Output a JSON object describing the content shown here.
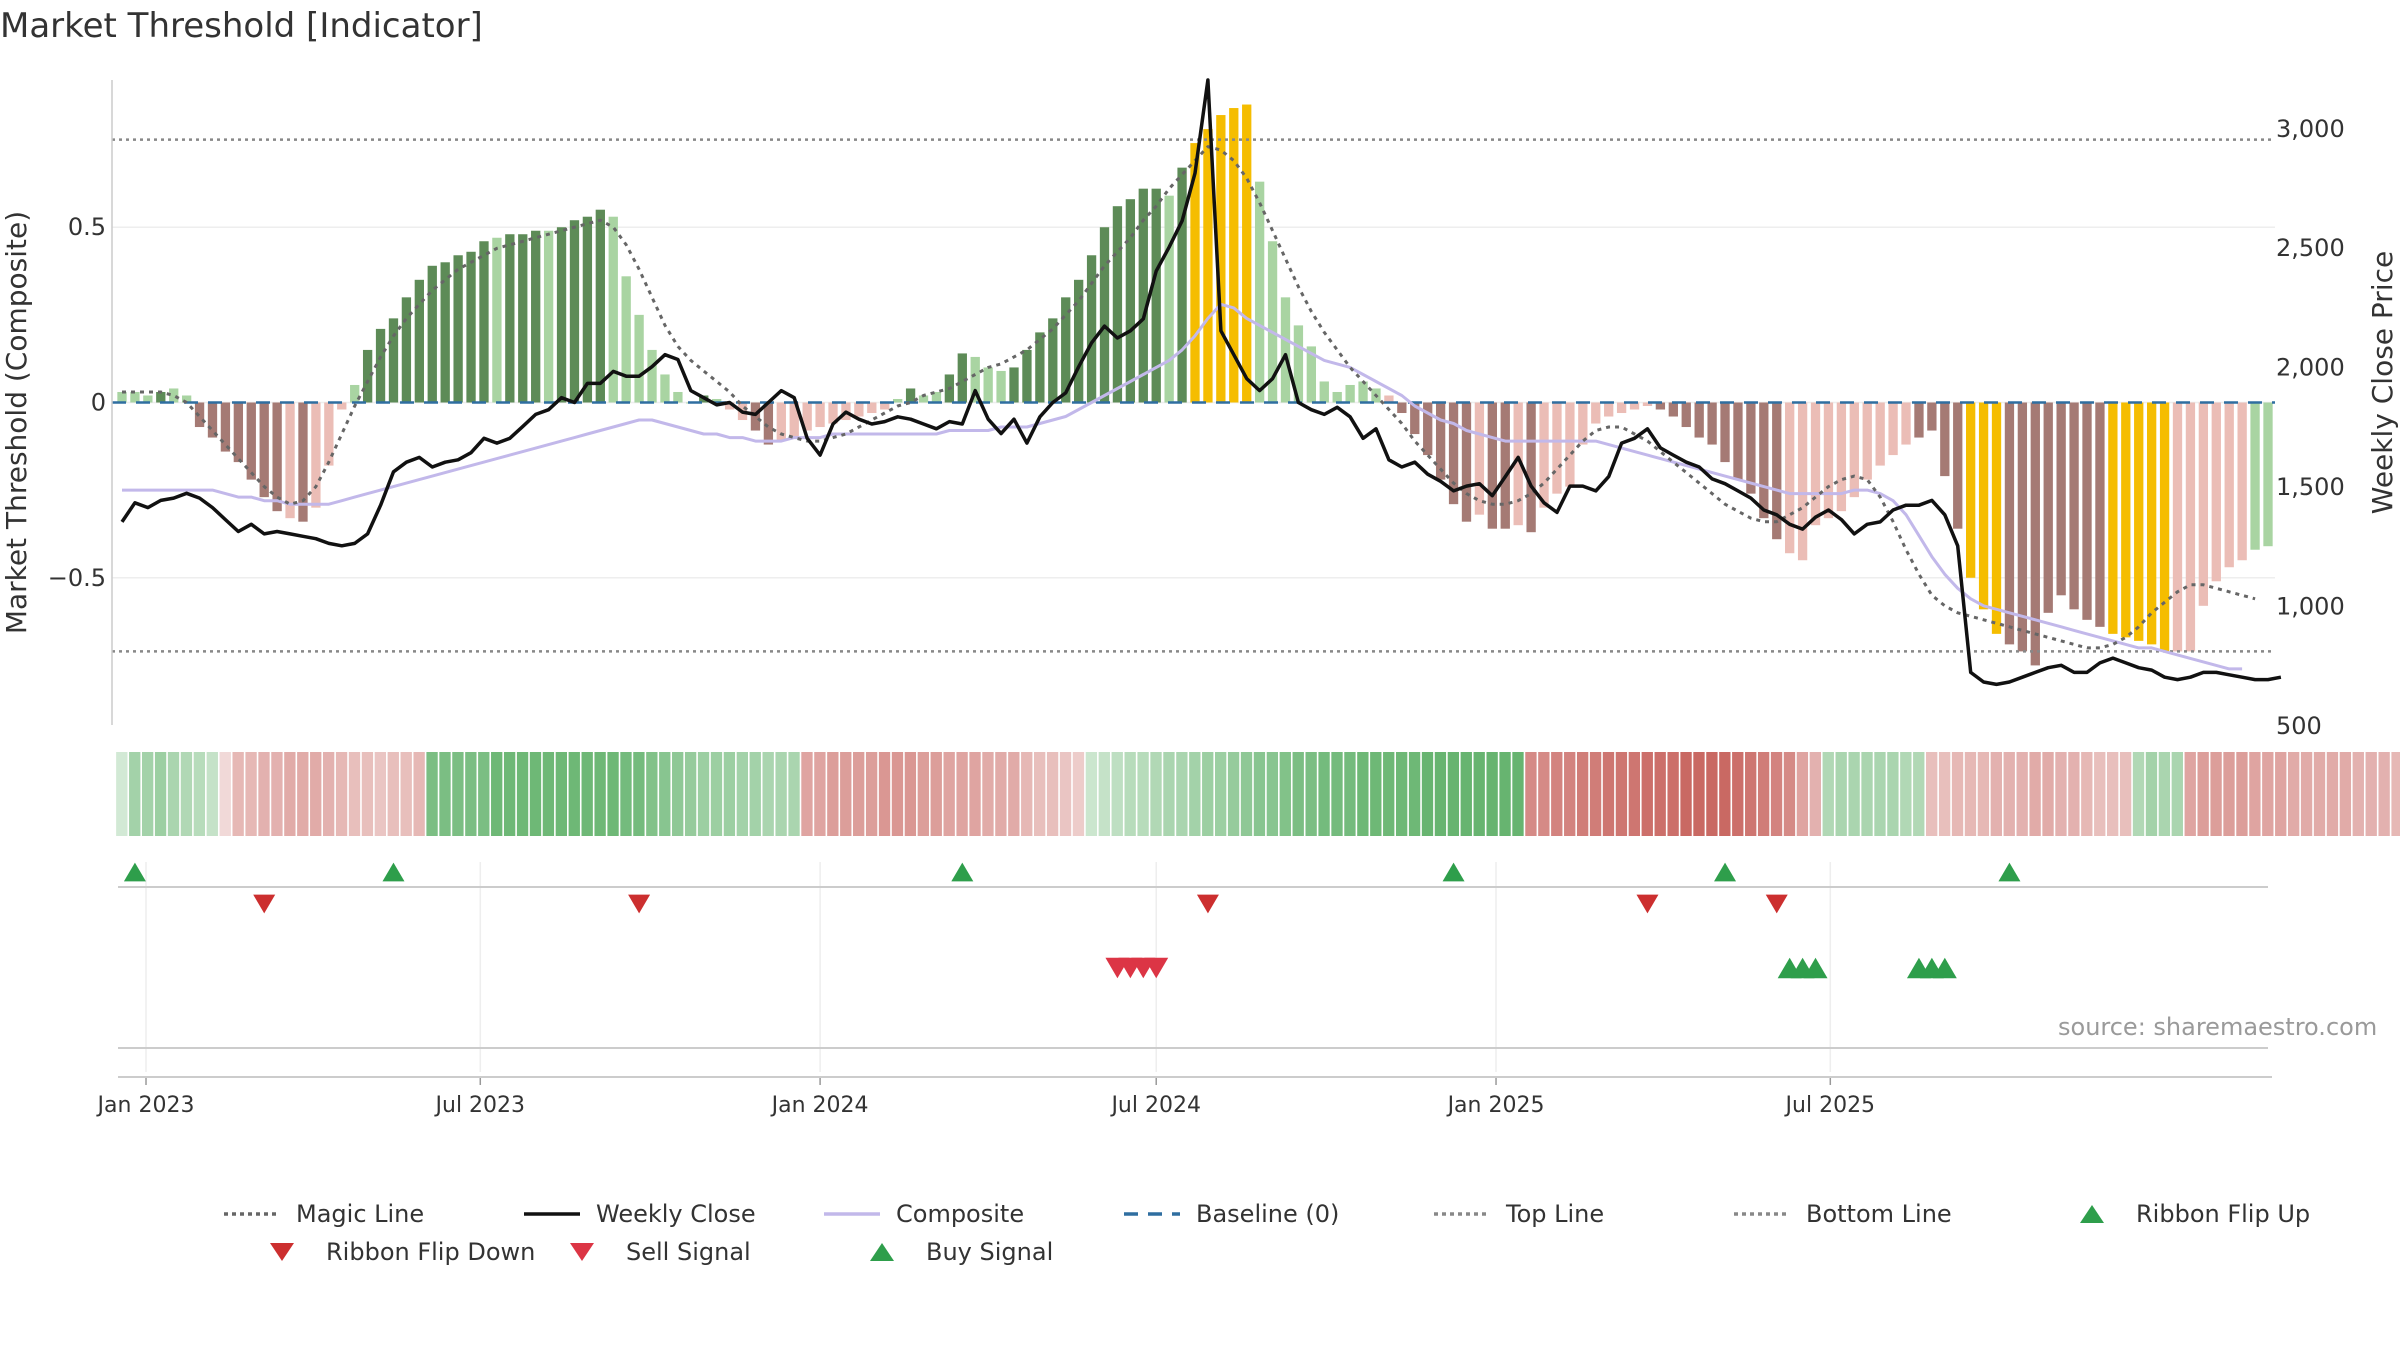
{
  "title": "Market Threshold [Indicator]",
  "source": "source: sharemaestro.com",
  "colors": {
    "dark_green": "#5d8b57",
    "light_green": "#a9d4a2",
    "dark_red": "#a57a74",
    "light_red": "#ebbdb6",
    "gold": "#f5bd00",
    "weekly_close": "#111111",
    "composite": "#c2b8ea",
    "magic": "#666666",
    "baseline": "#2f6ea0",
    "threshold": "#888888",
    "buy": "#2e9e4b",
    "sell": "#dc3545",
    "flip_up": "#2e9e4b",
    "flip_down": "#cc2f2f"
  },
  "chart_data": {
    "type": "bar",
    "title": "Market Threshold [Indicator]",
    "ylabel": "Market Threshold (Composite)",
    "ylabel_right": "Weekly Close Price",
    "x_ticks": [
      "Jan 2023",
      "Jul 2023",
      "Jan 2024",
      "Jul 2024",
      "Jan 2025",
      "Jul 2025"
    ],
    "x_tick_dates": [
      "2023-01-01",
      "2023-07-01",
      "2024-01-01",
      "2024-07-01",
      "2025-01-01",
      "2025-07-01"
    ],
    "y_ticks": [
      0.5,
      0,
      -0.5
    ],
    "y_tick_labels": [
      "0.5",
      "0",
      "−0.5"
    ],
    "y_right_ticks": [
      3000,
      2500,
      2000,
      1500,
      1000,
      500
    ],
    "y_right_tick_labels": [
      "3,000",
      "2,500",
      "2,000",
      "1,500",
      "1,000",
      "500"
    ],
    "ylim": [
      -0.92,
      0.92
    ],
    "ylim_right": [
      500,
      3200
    ],
    "top_line": 0.75,
    "bottom_line": -0.71,
    "baseline": 0,
    "start_date": "2022-12-19",
    "bars": [
      0.03,
      0.03,
      0.02,
      0.03,
      0.04,
      0.02,
      -0.07,
      -0.1,
      -0.14,
      -0.17,
      -0.22,
      -0.27,
      -0.31,
      -0.33,
      -0.34,
      -0.3,
      -0.18,
      -0.02,
      0.05,
      0.15,
      0.21,
      0.24,
      0.3,
      0.35,
      0.39,
      0.4,
      0.42,
      0.43,
      0.46,
      0.47,
      0.48,
      0.48,
      0.49,
      0.49,
      0.5,
      0.52,
      0.53,
      0.55,
      0.53,
      0.36,
      0.25,
      0.15,
      0.08,
      0.03,
      0.0,
      0.02,
      0.01,
      -0.02,
      -0.05,
      -0.08,
      -0.12,
      -0.11,
      -0.1,
      -0.08,
      -0.07,
      -0.06,
      -0.05,
      -0.04,
      -0.03,
      -0.02,
      0.01,
      0.04,
      0.02,
      0.03,
      0.08,
      0.14,
      0.13,
      0.1,
      0.09,
      0.1,
      0.15,
      0.2,
      0.24,
      0.3,
      0.35,
      0.42,
      0.5,
      0.56,
      0.58,
      0.61,
      0.61,
      0.59,
      0.67,
      0.74,
      0.78,
      0.82,
      0.84,
      0.85,
      0.63,
      0.46,
      0.3,
      0.22,
      0.16,
      0.06,
      0.03,
      0.05,
      0.06,
      0.04,
      0.02,
      -0.03,
      -0.09,
      -0.15,
      -0.22,
      -0.29,
      -0.34,
      -0.32,
      -0.36,
      -0.36,
      -0.35,
      -0.37,
      -0.3,
      -0.26,
      -0.24,
      -0.12,
      -0.06,
      -0.04,
      -0.03,
      -0.02,
      -0.01,
      -0.02,
      -0.04,
      -0.07,
      -0.1,
      -0.12,
      -0.17,
      -0.22,
      -0.26,
      -0.33,
      -0.39,
      -0.43,
      -0.45,
      -0.35,
      -0.33,
      -0.31,
      -0.27,
      -0.22,
      -0.18,
      -0.15,
      -0.12,
      -0.1,
      -0.08,
      -0.21,
      -0.36,
      -0.5,
      -0.59,
      -0.66,
      -0.69,
      -0.71,
      -0.75,
      -0.6,
      -0.55,
      -0.59,
      -0.62,
      -0.64,
      -0.66,
      -0.67,
      -0.68,
      -0.69,
      -0.71,
      -0.71,
      -0.71,
      -0.58,
      -0.51,
      -0.47,
      -0.45,
      -0.42,
      -0.41
    ],
    "bar_colors": [
      "lg",
      "lg",
      "lg",
      "dg",
      "lg",
      "lg",
      "dr",
      "dr",
      "dr",
      "dr",
      "dr",
      "dr",
      "dr",
      "lr",
      "dr",
      "lr",
      "lr",
      "lr",
      "lg",
      "dg",
      "dg",
      "dg",
      "dg",
      "dg",
      "dg",
      "dg",
      "dg",
      "dg",
      "dg",
      "lg",
      "dg",
      "dg",
      "dg",
      "lg",
      "dg",
      "dg",
      "dg",
      "dg",
      "lg",
      "lg",
      "lg",
      "lg",
      "lg",
      "lg",
      "lg",
      "dg",
      "lg",
      "lr",
      "lr",
      "dr",
      "dr",
      "lr",
      "lr",
      "lr",
      "lr",
      "lr",
      "lr",
      "lr",
      "lr",
      "lr",
      "lg",
      "dg",
      "lg",
      "lg",
      "dg",
      "dg",
      "lg",
      "lg",
      "lg",
      "dg",
      "dg",
      "dg",
      "dg",
      "dg",
      "dg",
      "dg",
      "dg",
      "dg",
      "dg",
      "dg",
      "dg",
      "lg",
      "dg",
      "y",
      "y",
      "y",
      "y",
      "y",
      "lg",
      "lg",
      "lg",
      "lg",
      "lg",
      "lg",
      "lg",
      "lg",
      "lg",
      "lg",
      "lr",
      "dr",
      "dr",
      "dr",
      "dr",
      "dr",
      "dr",
      "lr",
      "dr",
      "dr",
      "lr",
      "dr",
      "lr",
      "lr",
      "lr",
      "lr",
      "lr",
      "lr",
      "lr",
      "lr",
      "lr",
      "dr",
      "dr",
      "dr",
      "dr",
      "dr",
      "dr",
      "dr",
      "dr",
      "dr",
      "dr",
      "lr",
      "lr",
      "lr",
      "lr",
      "lr",
      "lr",
      "lr",
      "lr",
      "lr",
      "lr",
      "dr",
      "dr",
      "dr",
      "dr",
      "y",
      "y",
      "y",
      "dr",
      "dr",
      "dr",
      "dr",
      "dr",
      "dr",
      "dr",
      "dr",
      "y",
      "y",
      "y",
      "y",
      "y",
      "lr",
      "lr",
      "lr",
      "lr",
      "lr",
      "lr"
    ],
    "series": [
      {
        "name": "Magic Line",
        "axis": "left",
        "values": [
          0.03,
          0.03,
          0.03,
          0.03,
          0.02,
          0.0,
          -0.04,
          -0.08,
          -0.12,
          -0.16,
          -0.2,
          -0.24,
          -0.27,
          -0.29,
          -0.28,
          -0.24,
          -0.17,
          -0.09,
          -0.01,
          0.06,
          0.13,
          0.19,
          0.24,
          0.28,
          0.32,
          0.35,
          0.38,
          0.4,
          0.42,
          0.44,
          0.45,
          0.46,
          0.47,
          0.48,
          0.49,
          0.5,
          0.51,
          0.52,
          0.5,
          0.45,
          0.38,
          0.3,
          0.22,
          0.16,
          0.12,
          0.09,
          0.06,
          0.03,
          -0.01,
          -0.04,
          -0.07,
          -0.09,
          -0.1,
          -0.11,
          -0.11,
          -0.1,
          -0.09,
          -0.07,
          -0.05,
          -0.03,
          -0.01,
          0.0,
          0.02,
          0.03,
          0.04,
          0.06,
          0.08,
          0.1,
          0.11,
          0.13,
          0.15,
          0.18,
          0.21,
          0.25,
          0.29,
          0.34,
          0.39,
          0.43,
          0.47,
          0.52,
          0.56,
          0.61,
          0.65,
          0.69,
          0.73,
          0.72,
          0.69,
          0.64,
          0.57,
          0.49,
          0.41,
          0.33,
          0.26,
          0.2,
          0.15,
          0.1,
          0.06,
          0.02,
          -0.02,
          -0.06,
          -0.11,
          -0.15,
          -0.19,
          -0.23,
          -0.26,
          -0.28,
          -0.29,
          -0.29,
          -0.28,
          -0.26,
          -0.23,
          -0.19,
          -0.15,
          -0.11,
          -0.08,
          -0.07,
          -0.07,
          -0.09,
          -0.11,
          -0.14,
          -0.17,
          -0.2,
          -0.23,
          -0.26,
          -0.29,
          -0.31,
          -0.33,
          -0.34,
          -0.34,
          -0.32,
          -0.3,
          -0.27,
          -0.24,
          -0.22,
          -0.21,
          -0.22,
          -0.27,
          -0.34,
          -0.42,
          -0.49,
          -0.55,
          -0.58,
          -0.6,
          -0.61,
          -0.62,
          -0.63,
          -0.64,
          -0.65,
          -0.66,
          -0.67,
          -0.68,
          -0.69,
          -0.7,
          -0.7,
          -0.69,
          -0.67,
          -0.64,
          -0.6,
          -0.57,
          -0.54,
          -0.52,
          -0.52,
          -0.53,
          -0.54,
          -0.55,
          -0.56
        ]
      },
      {
        "name": "Weekly Close",
        "axis": "right",
        "values": [
          1350,
          1430,
          1410,
          1440,
          1450,
          1470,
          1450,
          1410,
          1360,
          1310,
          1340,
          1300,
          1310,
          1300,
          1290,
          1280,
          1260,
          1250,
          1260,
          1300,
          1420,
          1560,
          1600,
          1620,
          1580,
          1600,
          1610,
          1640,
          1700,
          1680,
          1700,
          1750,
          1800,
          1820,
          1870,
          1850,
          1930,
          1930,
          1980,
          1960,
          1960,
          2000,
          2050,
          2030,
          1900,
          1870,
          1840,
          1850,
          1810,
          1800,
          1850,
          1900,
          1870,
          1700,
          1630,
          1760,
          1810,
          1780,
          1760,
          1770,
          1790,
          1780,
          1760,
          1740,
          1770,
          1760,
          1900,
          1780,
          1720,
          1780,
          1680,
          1790,
          1850,
          1890,
          2000,
          2100,
          2170,
          2120,
          2150,
          2200,
          2400,
          2500,
          2610,
          2810,
          3200,
          2150,
          2050,
          1950,
          1900,
          1950,
          2050,
          1850,
          1820,
          1800,
          1830,
          1790,
          1700,
          1740,
          1610,
          1580,
          1600,
          1550,
          1520,
          1480,
          1500,
          1510,
          1460,
          1540,
          1620,
          1500,
          1430,
          1390,
          1500,
          1500,
          1480,
          1540,
          1680,
          1700,
          1740,
          1660,
          1630,
          1600,
          1580,
          1530,
          1510,
          1480,
          1450,
          1400,
          1380,
          1340,
          1320,
          1370,
          1400,
          1360,
          1300,
          1340,
          1350,
          1400,
          1420,
          1420,
          1440,
          1380,
          1250,
          720,
          680,
          670,
          680,
          700,
          720,
          740,
          750,
          720,
          720,
          760,
          780,
          760,
          740,
          730,
          700,
          690,
          700,
          720,
          720,
          710,
          700,
          690,
          690,
          700
        ]
      },
      {
        "name": "Composite",
        "axis": "left",
        "values": [
          -0.25,
          -0.25,
          -0.25,
          -0.25,
          -0.25,
          -0.25,
          -0.25,
          -0.25,
          -0.26,
          -0.27,
          -0.27,
          -0.28,
          -0.28,
          -0.29,
          -0.29,
          -0.29,
          -0.29,
          -0.28,
          -0.27,
          -0.26,
          -0.25,
          -0.24,
          -0.23,
          -0.22,
          -0.21,
          -0.2,
          -0.19,
          -0.18,
          -0.17,
          -0.16,
          -0.15,
          -0.14,
          -0.13,
          -0.12,
          -0.11,
          -0.1,
          -0.09,
          -0.08,
          -0.07,
          -0.06,
          -0.05,
          -0.05,
          -0.06,
          -0.07,
          -0.08,
          -0.09,
          -0.09,
          -0.1,
          -0.1,
          -0.11,
          -0.11,
          -0.11,
          -0.1,
          -0.1,
          -0.1,
          -0.09,
          -0.09,
          -0.09,
          -0.09,
          -0.09,
          -0.09,
          -0.09,
          -0.09,
          -0.09,
          -0.08,
          -0.08,
          -0.08,
          -0.08,
          -0.07,
          -0.07,
          -0.07,
          -0.06,
          -0.05,
          -0.04,
          -0.02,
          0.0,
          0.02,
          0.04,
          0.06,
          0.08,
          0.1,
          0.12,
          0.15,
          0.19,
          0.24,
          0.28,
          0.27,
          0.24,
          0.22,
          0.2,
          0.18,
          0.16,
          0.14,
          0.12,
          0.11,
          0.1,
          0.08,
          0.06,
          0.04,
          0.02,
          -0.01,
          -0.03,
          -0.05,
          -0.06,
          -0.08,
          -0.09,
          -0.1,
          -0.11,
          -0.11,
          -0.11,
          -0.11,
          -0.11,
          -0.11,
          -0.11,
          -0.11,
          -0.12,
          -0.13,
          -0.14,
          -0.15,
          -0.16,
          -0.17,
          -0.18,
          -0.19,
          -0.2,
          -0.21,
          -0.22,
          -0.23,
          -0.24,
          -0.25,
          -0.26,
          -0.26,
          -0.26,
          -0.26,
          -0.26,
          -0.25,
          -0.25,
          -0.26,
          -0.28,
          -0.32,
          -0.38,
          -0.44,
          -0.49,
          -0.53,
          -0.56,
          -0.58,
          -0.59,
          -0.6,
          -0.61,
          -0.62,
          -0.63,
          -0.64,
          -0.65,
          -0.66,
          -0.67,
          -0.68,
          -0.69,
          -0.7,
          -0.7,
          -0.71,
          -0.72,
          -0.73,
          -0.74,
          -0.75,
          -0.76,
          -0.76
        ]
      }
    ],
    "ribbon_levels": [
      0.15,
      0.5,
      0.5,
      0.55,
      0.45,
      0.4,
      0.35,
      0.25,
      -0.1,
      -0.35,
      -0.35,
      -0.4,
      -0.4,
      -0.45,
      -0.45,
      -0.45,
      -0.4,
      -0.35,
      -0.3,
      -0.3,
      -0.25,
      -0.3,
      -0.3,
      -0.35,
      0.8,
      0.8,
      0.8,
      0.8,
      0.8,
      0.9,
      0.9,
      0.9,
      0.9,
      0.9,
      0.9,
      0.9,
      0.9,
      0.9,
      0.9,
      0.85,
      0.85,
      0.75,
      0.7,
      0.65,
      0.6,
      0.55,
      0.55,
      0.55,
      0.5,
      0.5,
      0.45,
      0.45,
      0.45,
      -0.5,
      -0.5,
      -0.55,
      -0.55,
      -0.55,
      -0.55,
      -0.6,
      -0.6,
      -0.6,
      -0.55,
      -0.55,
      -0.5,
      -0.5,
      -0.5,
      -0.45,
      -0.45,
      -0.45,
      -0.35,
      -0.3,
      -0.3,
      -0.25,
      -0.2,
      0.2,
      0.25,
      0.3,
      0.35,
      0.35,
      0.4,
      0.45,
      0.45,
      0.5,
      0.55,
      0.55,
      0.6,
      0.65,
      0.7,
      0.7,
      0.75,
      0.8,
      0.8,
      0.85,
      0.85,
      0.85,
      0.9,
      0.9,
      0.9,
      0.9,
      0.9,
      0.95,
      0.95,
      0.95,
      0.95,
      0.95,
      0.95,
      0.95,
      0.95,
      -0.7,
      -0.7,
      -0.75,
      -0.75,
      -0.8,
      -0.8,
      -0.85,
      -0.85,
      -0.85,
      -0.9,
      -0.9,
      -0.9,
      -0.95,
      -0.95,
      -0.95,
      -0.95,
      -0.9,
      -0.85,
      -0.8,
      -0.75,
      -0.7,
      -0.5,
      -0.4,
      0.4,
      0.45,
      0.45,
      0.45,
      0.45,
      0.45,
      0.4,
      0.4,
      -0.3,
      -0.3,
      -0.35,
      -0.35,
      -0.35,
      -0.4,
      -0.4,
      -0.4,
      -0.45,
      -0.45,
      -0.4,
      -0.4,
      -0.35,
      -0.3,
      -0.3,
      -0.3,
      0.4,
      0.5,
      0.45,
      0.45,
      -0.5,
      -0.55,
      -0.55,
      -0.55,
      -0.55,
      -0.5,
      -0.5,
      -0.5,
      -0.45,
      -0.45,
      -0.45,
      -0.45,
      -0.45,
      -0.4,
      -0.4,
      -0.4,
      -0.35,
      -0.35,
      -0.3,
      -0.3,
      -0.3,
      -0.3,
      0.45,
      0.5
    ],
    "ribbon_flip_up_dates": [
      "2022-12-26",
      "2023-05-15",
      "2024-03-18",
      "2024-12-09",
      "2025-05-05",
      "2025-10-06"
    ],
    "ribbon_flip_down_dates": [
      "2023-03-06",
      "2023-09-25",
      "2024-07-29",
      "2025-03-24",
      "2025-06-02"
    ],
    "sell_signal_dates": [
      "2024-06-10",
      "2024-06-17",
      "2024-06-24",
      "2024-07-01"
    ],
    "buy_signal_dates": [
      "2025-06-09",
      "2025-06-16",
      "2025-06-23",
      "2025-08-18",
      "2025-08-25",
      "2025-09-01"
    ]
  },
  "legend": [
    {
      "label": "Magic Line",
      "symbol": "dotted",
      "color": "#666666"
    },
    {
      "label": "Weekly Close",
      "symbol": "solid",
      "color": "#111111"
    },
    {
      "label": "Composite",
      "symbol": "solid",
      "color": "#c2b8ea"
    },
    {
      "label": "Baseline (0)",
      "symbol": "dashed",
      "color": "#2f6ea0"
    },
    {
      "label": "Top Line",
      "symbol": "dotted",
      "color": "#888888"
    },
    {
      "label": "Bottom Line",
      "symbol": "dotted",
      "color": "#888888"
    },
    {
      "label": "Ribbon Flip Up",
      "symbol": "triangle-up",
      "color": "#2e9e4b"
    },
    {
      "label": "Ribbon Flip Down",
      "symbol": "triangle-down",
      "color": "#cc2f2f"
    },
    {
      "label": "Sell Signal",
      "symbol": "triangle-down",
      "color": "#dc3545"
    },
    {
      "label": "Buy Signal",
      "symbol": "triangle-up",
      "color": "#2e9e4b"
    }
  ]
}
